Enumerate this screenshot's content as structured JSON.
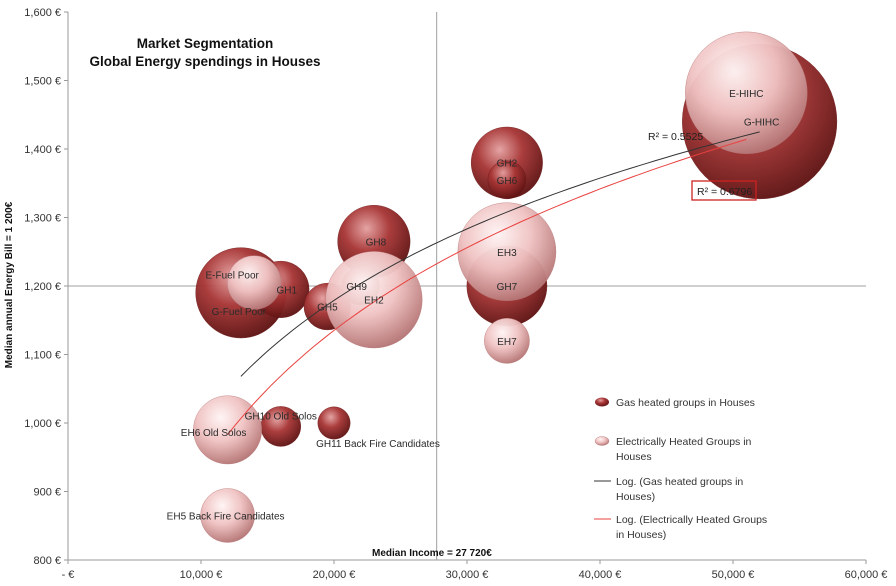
{
  "chart_data": {
    "type": "scatter",
    "subtype": "bubble",
    "title": [
      "Market Segmentation",
      "Global Energy spendings in Houses"
    ],
    "xlabel": "Median Income = 27 720€",
    "ylabel": "Median annual Energy Bill = 1 200€",
    "xlim": [
      0,
      60000
    ],
    "ylim": [
      800,
      1600
    ],
    "x_ticks": [
      {
        "value": 0,
        "label": "-  €"
      },
      {
        "value": 10000,
        "label": "10,000 €"
      },
      {
        "value": 20000,
        "label": "20,000 €"
      },
      {
        "value": 30000,
        "label": "30,000 €"
      },
      {
        "value": 40000,
        "label": "40,000 €"
      },
      {
        "value": 50000,
        "label": "50,000 €"
      },
      {
        "value": 60000,
        "label": "60,000 €"
      }
    ],
    "y_ticks": [
      {
        "value": 800,
        "label": "800 €"
      },
      {
        "value": 900,
        "label": "900 €"
      },
      {
        "value": 1000,
        "label": "1,000 €"
      },
      {
        "value": 1100,
        "label": "1,100 €"
      },
      {
        "value": 1200,
        "label": "1,200 €"
      },
      {
        "value": 1300,
        "label": "1,300 €"
      },
      {
        "value": 1400,
        "label": "1,400 €"
      },
      {
        "value": 1500,
        "label": "1,500 €"
      },
      {
        "value": 1600,
        "label": "1,600 €"
      }
    ],
    "crosshair": {
      "x": 27720,
      "y": 1200
    },
    "grid": false,
    "legend_position": "right",
    "series": [
      {
        "name": "Gas heated groups in Houses",
        "color": "#9e2c2c",
        "points": [
          {
            "label": "G-HIHC",
            "x": 52000,
            "y": 1440,
            "size": 8.2
          },
          {
            "label": "GH2",
            "x": 33000,
            "y": 1380,
            "size": 1.75
          },
          {
            "label": "GH6",
            "x": 33000,
            "y": 1355,
            "size": 0.5
          },
          {
            "label": "GH8",
            "x": 23000,
            "y": 1265,
            "size": 1.8
          },
          {
            "label": "GH7",
            "x": 33000,
            "y": 1200,
            "size": 2.2
          },
          {
            "label": "G-Fuel Poor",
            "x": 13000,
            "y": 1190,
            "size": 2.8
          },
          {
            "label": "GH1",
            "x": 16000,
            "y": 1195,
            "size": 1.1
          },
          {
            "label": "GH5",
            "x": 19500,
            "y": 1170,
            "size": 0.75
          },
          {
            "label": "GH9",
            "x": 22000,
            "y": 1200,
            "size": 0.5
          },
          {
            "label": "GH10 Old Solos",
            "x": 16000,
            "y": 995,
            "size": 0.55
          },
          {
            "label": "GH11 Back Fire Candidates",
            "x": 20000,
            "y": 1000,
            "size": 0.36
          }
        ]
      },
      {
        "name": "Electrically Heated Groups in Houses",
        "color": "#f2c6c6",
        "points": [
          {
            "label": "E-HIHC",
            "x": 51000,
            "y": 1482,
            "size": 5.1
          },
          {
            "label": "EH3",
            "x": 33000,
            "y": 1250,
            "size": 3.3
          },
          {
            "label": "EH2",
            "x": 23000,
            "y": 1180,
            "size": 3.2
          },
          {
            "label": "E-Fuel Poor",
            "x": 14000,
            "y": 1205,
            "size": 1.0
          },
          {
            "label": "EH7",
            "x": 33000,
            "y": 1120,
            "size": 0.7
          },
          {
            "label": "EH6  Old Solos",
            "x": 12000,
            "y": 990,
            "size": 1.6
          },
          {
            "label": "EH5 Back Fire Candidates",
            "x": 12000,
            "y": 865,
            "size": 1.0
          }
        ]
      }
    ],
    "trendlines": [
      {
        "name": "Log. (Gas heated groups in Houses)",
        "type": "logarithmic",
        "color": "#333333",
        "x_range": [
          13000,
          52000
        ],
        "y_range": [
          1068,
          1425
        ],
        "r2_label": "R² = 0.5525"
      },
      {
        "name": "Log. (Electrically Heated Groups in Houses)",
        "type": "logarithmic",
        "color": "#e8423f",
        "x_range": [
          12000,
          51000
        ],
        "y_range": [
          983,
          1414
        ],
        "r2_label": "R² = 0.6796"
      }
    ]
  }
}
